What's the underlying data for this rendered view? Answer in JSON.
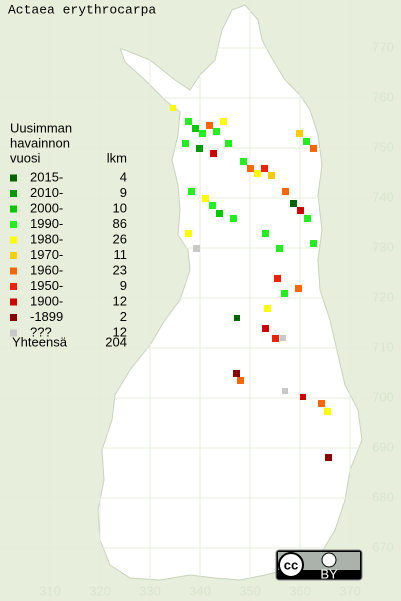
{
  "title": "Actaea erythrocarpa",
  "legend": {
    "heading": [
      "Uusimman",
      "havainnon",
      "vuosi"
    ],
    "count_heading": "lkm",
    "rows": [
      {
        "label": "2015-",
        "count": 4,
        "color": "#006400"
      },
      {
        "label": "2010-",
        "count": 9,
        "color": "#009900"
      },
      {
        "label": "2000-",
        "count": 10,
        "color": "#00c800"
      },
      {
        "label": "1990-",
        "count": 86,
        "color": "#22ee22"
      },
      {
        "label": "1980-",
        "count": 26,
        "color": "#ffff00"
      },
      {
        "label": "1970-",
        "count": 11,
        "color": "#ffcc00"
      },
      {
        "label": "1960-",
        "count": 23,
        "color": "#ff6600"
      },
      {
        "label": "1950-",
        "count": 9,
        "color": "#ee2200"
      },
      {
        "label": "1900-",
        "count": 12,
        "color": "#cc0000"
      },
      {
        "label": "-1899",
        "count": 2,
        "color": "#880000"
      },
      {
        "label": "???",
        "count": 12,
        "color": "#c8c8c8"
      }
    ],
    "total_label": "Yhteensä",
    "total": 204
  },
  "grid": {
    "x_labels": [
      310,
      320,
      330,
      340,
      350,
      360,
      370
    ],
    "y_labels": [
      770,
      760,
      750,
      740,
      730,
      720,
      710,
      700,
      690,
      680,
      670
    ]
  },
  "license": {
    "icon": "cc",
    "label": "BY"
  }
}
